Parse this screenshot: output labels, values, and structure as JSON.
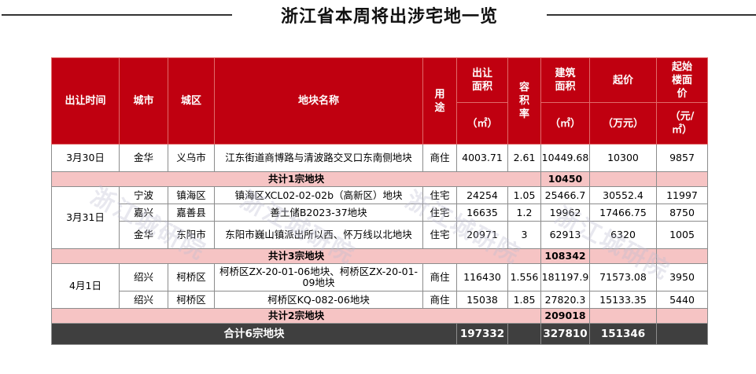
{
  "title": "浙江省本周将出涉宅地一览",
  "watermark": "浙江城研院",
  "headers": {
    "date": "出让时间",
    "city": "城市",
    "district": "城区",
    "plot_name": "地块名称",
    "use": "用途",
    "area": "出让面积",
    "area_unit": "（㎡）",
    "far": "容积率",
    "building_area": "建筑面积",
    "building_area_unit": "（㎡）",
    "start_price": "起价",
    "start_price_unit": "（万元）",
    "floor_price": "起始楼面价",
    "floor_price_unit": "（元/㎡）"
  },
  "groups": [
    {
      "date": "3月30日",
      "rows": [
        {
          "city": "金华",
          "district": "义乌市",
          "plot": "江东街道商博路与清波路交叉口东南侧地块",
          "use": "商住",
          "area": "4003.71",
          "far": "2.61",
          "building_area": "10449.68",
          "start_price": "10300",
          "floor_price": "9857"
        }
      ],
      "subtotal_label": "共计1宗地块",
      "subtotal_value": "10450"
    },
    {
      "date": "3月31日",
      "rows": [
        {
          "city": "宁波",
          "district": "镇海区",
          "plot": "镇海区XCL02-02-02b（高新区）地块",
          "use": "住宅",
          "area": "24254",
          "far": "1.05",
          "building_area": "25466.7",
          "start_price": "30552.4",
          "floor_price": "11997"
        },
        {
          "city": "嘉兴",
          "district": "嘉善县",
          "plot": "善土储B2023-37地块",
          "use": "住宅",
          "area": "16635",
          "far": "1.2",
          "building_area": "19962",
          "start_price": "17466.75",
          "floor_price": "8750"
        },
        {
          "city": "金华",
          "district": "东阳市",
          "plot": "东阳市巍山镇派出所以西、怀万线以北地块",
          "use": "住宅",
          "area": "20971",
          "far": "3",
          "building_area": "62913",
          "start_price": "6320",
          "floor_price": "1005"
        }
      ],
      "subtotal_label": "共计3宗地块",
      "subtotal_value": "108342"
    },
    {
      "date": "4月1日",
      "rows": [
        {
          "city": "绍兴",
          "district": "柯桥区",
          "plot": "柯桥区ZX-20-01-06地块、柯桥区ZX-20-01-09地块",
          "use": "商住",
          "area": "116430",
          "far": "1.556",
          "building_area": "181197.9",
          "start_price": "71573.08",
          "floor_price": "3950"
        },
        {
          "city": "绍兴",
          "district": "柯桥区",
          "plot": "柯桥区KQ-082-06地块",
          "use": "商住",
          "area": "15038",
          "far": "1.85",
          "building_area": "27820.3",
          "start_price": "15133.35",
          "floor_price": "5440"
        }
      ],
      "subtotal_label": "共计2宗地块",
      "subtotal_value": "209018"
    }
  ],
  "total": {
    "label": "合计6宗地块",
    "area": "197332",
    "building_area": "327810",
    "start_price": "151346"
  },
  "colors": {
    "header_bg": "#c00010",
    "subtotal_bg": "#f6c4c4",
    "total_bg": "#3f3f3f"
  }
}
